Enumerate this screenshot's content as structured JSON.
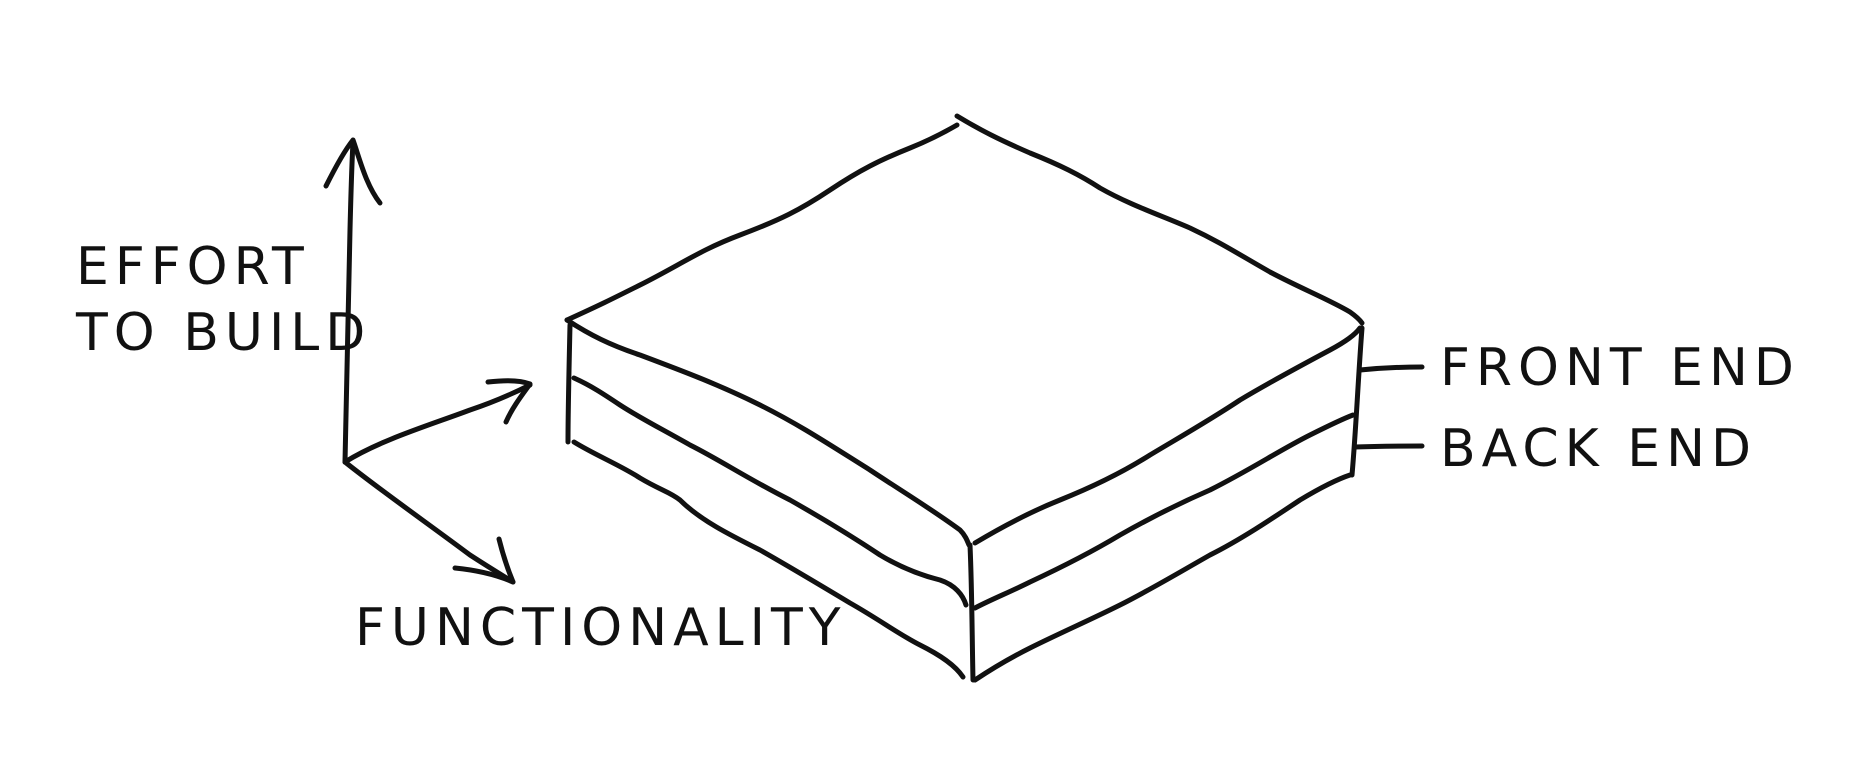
{
  "diagram": {
    "axes": {
      "vertical_label_line1": "EFFORT",
      "vertical_label_line2": "TO BUILD",
      "horizontal_label": "FUNCTIONALITY"
    },
    "layers": [
      {
        "label": "FRONT END"
      },
      {
        "label": "BACK END"
      }
    ]
  },
  "colors": {
    "ink": "#111111",
    "background": "#ffffff"
  }
}
